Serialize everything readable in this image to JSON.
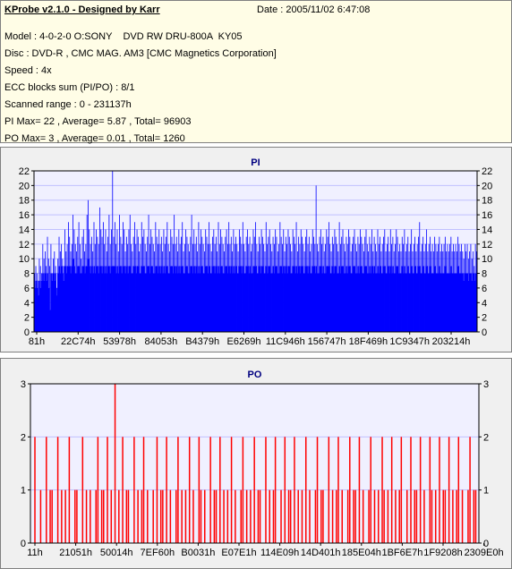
{
  "header": {
    "title": "KProbe v2.1.0 - Designed by Karr",
    "date": "Date : 2005/11/02 6:47:08"
  },
  "info": {
    "model": "Model : 4-0-2-0 O:SONY    DVD RW DRU-800A  KY05",
    "disc": "Disc : DVD-R , CMC MAG. AM3 [CMC Magnetics Corporation]",
    "speed": "Speed : 4x",
    "ecc": "ECC blocks sum (PI/PO) : 8/1",
    "range": "Scanned range : 0 - 231137h",
    "pi": "PI Max= 22 , Average= 5.87 , Total= 96903",
    "po": "PO Max= 3 , Average= 0.01 , Total= 1260"
  },
  "colors": {
    "pi": "#0000ff",
    "po": "#ff0000",
    "plot_bg": "#f0f0ff",
    "grid": "#c0c0ff"
  },
  "chart_data": [
    {
      "type": "bar",
      "title": "PI",
      "ylim": [
        0,
        22
      ],
      "yticks": [
        0,
        2,
        4,
        6,
        8,
        10,
        12,
        14,
        16,
        18,
        20,
        22
      ],
      "xticks": [
        "81h",
        "22C74h",
        "53978h",
        "84053h",
        "B4379h",
        "E6269h",
        "11C946h",
        "156747h",
        "18F469h",
        "1C9347h",
        "203214h"
      ],
      "values": [
        8,
        9,
        8,
        7,
        10,
        9,
        8,
        12,
        10,
        11,
        9,
        13,
        10,
        9,
        12,
        8,
        10,
        11,
        9,
        6,
        10,
        13,
        11,
        12,
        10,
        9,
        14,
        11,
        12,
        15,
        13,
        11,
        12,
        16,
        14,
        12,
        11,
        13,
        15,
        12,
        10,
        13,
        14,
        11,
        12,
        16,
        18,
        14,
        12,
        13,
        11,
        15,
        12,
        14,
        13,
        12,
        17,
        14,
        13,
        15,
        12,
        14,
        11,
        13,
        16,
        12,
        14,
        22,
        13,
        15,
        12,
        14,
        11,
        16,
        13,
        12,
        15,
        14,
        11,
        13,
        12,
        14,
        16,
        12,
        11,
        13,
        15,
        12,
        14,
        13,
        11,
        12,
        15,
        13,
        14,
        12,
        11,
        13,
        16,
        12,
        14,
        13,
        12,
        11,
        15,
        13,
        12,
        14,
        12,
        13,
        11,
        14,
        12,
        13,
        15,
        12,
        11,
        14,
        13,
        12,
        16,
        12,
        13,
        11,
        14,
        12,
        13,
        15,
        11,
        12,
        14,
        13,
        12,
        11,
        13,
        16,
        12,
        14,
        12,
        13,
        11,
        15,
        12,
        14,
        13,
        12,
        11,
        14,
        13,
        12,
        15,
        12,
        11,
        13,
        14,
        12,
        13,
        11,
        15,
        12,
        14,
        13,
        12,
        11,
        13,
        14,
        12,
        15,
        12,
        13,
        11,
        14,
        12,
        13,
        12,
        11,
        14,
        13,
        12,
        15,
        12,
        11,
        13,
        14,
        12,
        13,
        11,
        12,
        14,
        13,
        15,
        12,
        11,
        13,
        12,
        14,
        13,
        12,
        11,
        15,
        12,
        13,
        14,
        12,
        11,
        13,
        12,
        14,
        13,
        11,
        12,
        15,
        13,
        12,
        14,
        11,
        13,
        12,
        14,
        13,
        12,
        11,
        14,
        13,
        12,
        15,
        11,
        13,
        12,
        14,
        13,
        12,
        11,
        13,
        14,
        12,
        13,
        11,
        12,
        14,
        13,
        12,
        20,
        12,
        11,
        13,
        14,
        12,
        13,
        11,
        12,
        14,
        13,
        15,
        12,
        11,
        13,
        12,
        14,
        13,
        12,
        11,
        15,
        12,
        13,
        14,
        12,
        11,
        13,
        12,
        14,
        13,
        11,
        12,
        13,
        14,
        12,
        11,
        13,
        12,
        14,
        13,
        12,
        11,
        13,
        14,
        12,
        11,
        13,
        12,
        14,
        11,
        13,
        12,
        11,
        14,
        12,
        13,
        11,
        12,
        13,
        14,
        11,
        12,
        13,
        11,
        14,
        12,
        13,
        11,
        12,
        14,
        13,
        11,
        12,
        11,
        13,
        12,
        14,
        11,
        12,
        13,
        11,
        12,
        14,
        11,
        12,
        13,
        11,
        12,
        13,
        15,
        11,
        12,
        13,
        11,
        12,
        14,
        11,
        12,
        13,
        11,
        12,
        11,
        13,
        12,
        11,
        12,
        13,
        11,
        12,
        11,
        12,
        13,
        11,
        12,
        11,
        12,
        13,
        11,
        12,
        11,
        12,
        11,
        13,
        12,
        11,
        12,
        11,
        10,
        12,
        11,
        12,
        10,
        11,
        12,
        10,
        11,
        9,
        12,
        11
      ],
      "floor": [
        6,
        7,
        6,
        5,
        7,
        6,
        7,
        8,
        7,
        8,
        7,
        8,
        6,
        3,
        8,
        7,
        8,
        7,
        8,
        5,
        8,
        9,
        8,
        9,
        8,
        7,
        9,
        8,
        9,
        9,
        9,
        8,
        9,
        10,
        9,
        8,
        8,
        9,
        9,
        8,
        8,
        9,
        9,
        8,
        9,
        9,
        10,
        9,
        8,
        9,
        8,
        9,
        8,
        9,
        9,
        8,
        9,
        9,
        8,
        9,
        8,
        9,
        8,
        9,
        9,
        8,
        9,
        9,
        9,
        9,
        8,
        9,
        8,
        9,
        9,
        8,
        9,
        9,
        8,
        9,
        8,
        9,
        9,
        8,
        8,
        9,
        9,
        8,
        9,
        9,
        8,
        8,
        9,
        9,
        9,
        8,
        8,
        9,
        9,
        8,
        9,
        9,
        8,
        8,
        9,
        9,
        8,
        9,
        8,
        9,
        8,
        9,
        8,
        9,
        9,
        8,
        8,
        9,
        9,
        8,
        9,
        8,
        9,
        8,
        9,
        8,
        9,
        9,
        8,
        8,
        9,
        9,
        8,
        8,
        9,
        9,
        8,
        9,
        8,
        9,
        8,
        9,
        8,
        9,
        9,
        8,
        8,
        9,
        9,
        8,
        9,
        8,
        8,
        9,
        9,
        8,
        9,
        8,
        9,
        8,
        9,
        9,
        8,
        8,
        9,
        9,
        8,
        9,
        8,
        9,
        8,
        9,
        8,
        9,
        8,
        8,
        9,
        9,
        8,
        9,
        8,
        8,
        9,
        9,
        8,
        9,
        8,
        8,
        9,
        9,
        9,
        8,
        8,
        9,
        8,
        9,
        9,
        8,
        8,
        9,
        8,
        9,
        9,
        8,
        8,
        9,
        8,
        9,
        9,
        8,
        8,
        9,
        9,
        8,
        9,
        8,
        9,
        8,
        9,
        9,
        8,
        8,
        9,
        9,
        8,
        9,
        8,
        9,
        8,
        9,
        9,
        8,
        8,
        9,
        9,
        8,
        9,
        8,
        8,
        9,
        9,
        8,
        9,
        8,
        8,
        9,
        9,
        8,
        9,
        8,
        8,
        9,
        9,
        9,
        8,
        8,
        9,
        8,
        9,
        9,
        8,
        8,
        9,
        8,
        9,
        9,
        8,
        8,
        9,
        8,
        9,
        9,
        8,
        8,
        9,
        9,
        8,
        8,
        9,
        8,
        9,
        9,
        8,
        8,
        9,
        9,
        8,
        8,
        9,
        8,
        9,
        8,
        9,
        8,
        8,
        9,
        8,
        9,
        8,
        8,
        9,
        9,
        8,
        8,
        9,
        8,
        9,
        8,
        9,
        8,
        8,
        9,
        9,
        8,
        8,
        8,
        9,
        8,
        9,
        8,
        8,
        9,
        8,
        8,
        9,
        8,
        8,
        9,
        8,
        8,
        9,
        9,
        8,
        8,
        9,
        8,
        8,
        9,
        8,
        8,
        9,
        8,
        8,
        8,
        9,
        8,
        8,
        8,
        9,
        8,
        8,
        8,
        8,
        9,
        8,
        8,
        8,
        8,
        9,
        8,
        8,
        8,
        8,
        8,
        9,
        8,
        8,
        8,
        8,
        7,
        8,
        8,
        8,
        7,
        8,
        8,
        7,
        8,
        7,
        8,
        8
      ]
    },
    {
      "type": "bar",
      "title": "PO",
      "ylim": [
        0,
        3
      ],
      "yticks": [
        0,
        1,
        2,
        3
      ],
      "xticks": [
        "11h",
        "21051h",
        "50014h",
        "7EF60h",
        "B0031h",
        "E07E1h",
        "114E09h",
        "14D401h",
        "185E04h",
        "1BF6E7h",
        "1F9208h",
        "2309E0h"
      ],
      "values": [
        0,
        0,
        2,
        0,
        0,
        1,
        0,
        0,
        2,
        0,
        1,
        1,
        0,
        0,
        2,
        0,
        1,
        0,
        1,
        0,
        2,
        0,
        0,
        1,
        1,
        0,
        0,
        2,
        0,
        1,
        0,
        1,
        0,
        0,
        1,
        2,
        0,
        1,
        1,
        0,
        2,
        0,
        1,
        0,
        3,
        0,
        1,
        0,
        2,
        0,
        1,
        1,
        0,
        0,
        2,
        0,
        1,
        0,
        1,
        2,
        0,
        1,
        0,
        0,
        1,
        0,
        2,
        0,
        1,
        1,
        0,
        2,
        0,
        1,
        0,
        0,
        1,
        2,
        0,
        1,
        0,
        1,
        0,
        2,
        0,
        1,
        0,
        0,
        2,
        1,
        0,
        1,
        0,
        0,
        2,
        0,
        1,
        1,
        0,
        2,
        0,
        1,
        0,
        1,
        0,
        2,
        0,
        1,
        0,
        0,
        1,
        2,
        0,
        1,
        0,
        1,
        0,
        2,
        0,
        1,
        1,
        0,
        0,
        2,
        0,
        1,
        0,
        1,
        2,
        0,
        0,
        1,
        0,
        2,
        0,
        1,
        1,
        0,
        2,
        0,
        1,
        0,
        1,
        0,
        2,
        0,
        1,
        0,
        0,
        1,
        2,
        0,
        1,
        1,
        0,
        0,
        2,
        0,
        1,
        0,
        1,
        2,
        0,
        1,
        0,
        0,
        1,
        2,
        0,
        1,
        1,
        0,
        2,
        0,
        1,
        0,
        0,
        1,
        2,
        0,
        1,
        0,
        1,
        0,
        2,
        1,
        0,
        1,
        0,
        2,
        0,
        1,
        0,
        1,
        2,
        0,
        0,
        1,
        0,
        2,
        0,
        1,
        1,
        0,
        2,
        0,
        1,
        0,
        0,
        2,
        1,
        0,
        1,
        0,
        2,
        0,
        1,
        1,
        0,
        2,
        0,
        1,
        0,
        1,
        2,
        0,
        1,
        0,
        0,
        1,
        2,
        0,
        1,
        1,
        0
      ]
    }
  ]
}
